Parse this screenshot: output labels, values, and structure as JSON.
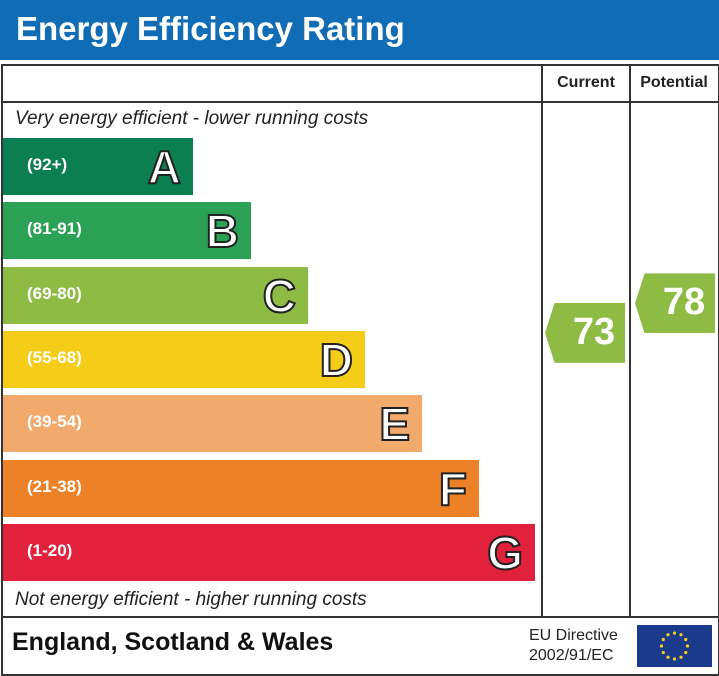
{
  "title": "Energy Efficiency Rating",
  "columns": {
    "current": "Current",
    "potential": "Potential"
  },
  "top_note": "Very energy efficient - lower running costs",
  "bottom_note": "Not energy efficient - higher running costs",
  "footer": {
    "region": "England, Scotland & Wales",
    "directive_line1": "EU Directive",
    "directive_line2": "2002/91/EC",
    "flag_icon": "eu-flag-icon"
  },
  "chart_data": {
    "type": "bar",
    "bands": [
      {
        "letter": "A",
        "range": "(92+)",
        "color": "#0c7f52"
      },
      {
        "letter": "B",
        "range": "(81-91)",
        "color": "#2aa155"
      },
      {
        "letter": "C",
        "range": "(69-80)",
        "color": "#8dbb43"
      },
      {
        "letter": "D",
        "range": "(55-68)",
        "color": "#f5cc18"
      },
      {
        "letter": "E",
        "range": "(39-54)",
        "color": "#f2a96c"
      },
      {
        "letter": "F",
        "range": "(21-38)",
        "color": "#ed8128"
      },
      {
        "letter": "G",
        "range": "(1-20)",
        "color": "#e2213c"
      }
    ],
    "current": {
      "value": 73,
      "band": "C",
      "color": "#8dbb43"
    },
    "potential": {
      "value": 78,
      "band": "C",
      "color": "#8dbb43"
    }
  }
}
